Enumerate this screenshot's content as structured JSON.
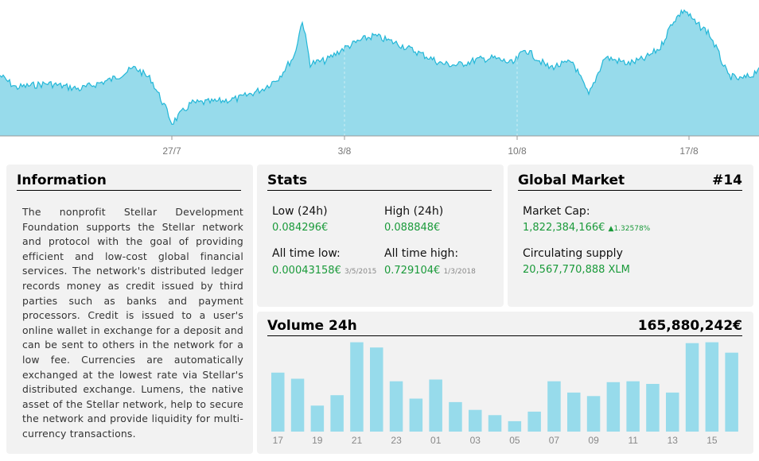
{
  "price_chart": {
    "x_ticks": [
      "27/7",
      "3/8",
      "10/8",
      "17/8"
    ],
    "fill_color": "#97dbeb",
    "line_color": "#22b7d8"
  },
  "information": {
    "title": "Information",
    "text": "The nonprofit Stellar Development Foundation supports the Stellar network and protocol with the goal of providing efficient and low-cost global financial services. The network's distributed ledger records money as credit issued by third parties such as banks and payment processors. Credit is issued to a user's online wallet in exchange for a deposit and can be sent to others in the network for a low fee. Currencies are automatically exchanged at the lowest rate via Stellar's distributed exchange. Lumens, the native asset of the Stellar network, help to secure the network and provide liquidity for multi-currency transactions."
  },
  "stats": {
    "title": "Stats",
    "low_24h_label": "Low (24h)",
    "low_24h_value": "0.084296€",
    "high_24h_label": "High (24h)",
    "high_24h_value": "0.088848€",
    "atl_label": "All time low:",
    "atl_value": "0.00043158€",
    "atl_date": "3/5/2015",
    "ath_label": "All time high:",
    "ath_value": "0.729104€",
    "ath_date": "1/3/2018"
  },
  "global_market": {
    "title": "Global Market",
    "rank": "#14",
    "market_cap_label": "Market Cap:",
    "market_cap_value": "1,822,384,166€",
    "market_cap_change": "▲1.32578%",
    "supply_label": "Circulating supply",
    "supply_value": "20,567,770,888 XLM"
  },
  "volume": {
    "title": "Volume 24h",
    "total": "165,880,242€",
    "bar_color": "#97dbeb",
    "chart_data": {
      "type": "bar",
      "values": [
        68,
        61,
        30,
        42,
        103,
        97,
        58,
        38,
        60,
        34,
        25,
        19,
        12,
        23,
        58,
        45,
        41,
        57,
        58,
        55,
        45,
        102,
        103,
        91
      ],
      "x_tick_labels": [
        "17",
        "19",
        "21",
        "23",
        "01",
        "03",
        "05",
        "07",
        "09",
        "11",
        "13",
        "15"
      ],
      "ylim": [
        0,
        110
      ]
    }
  }
}
